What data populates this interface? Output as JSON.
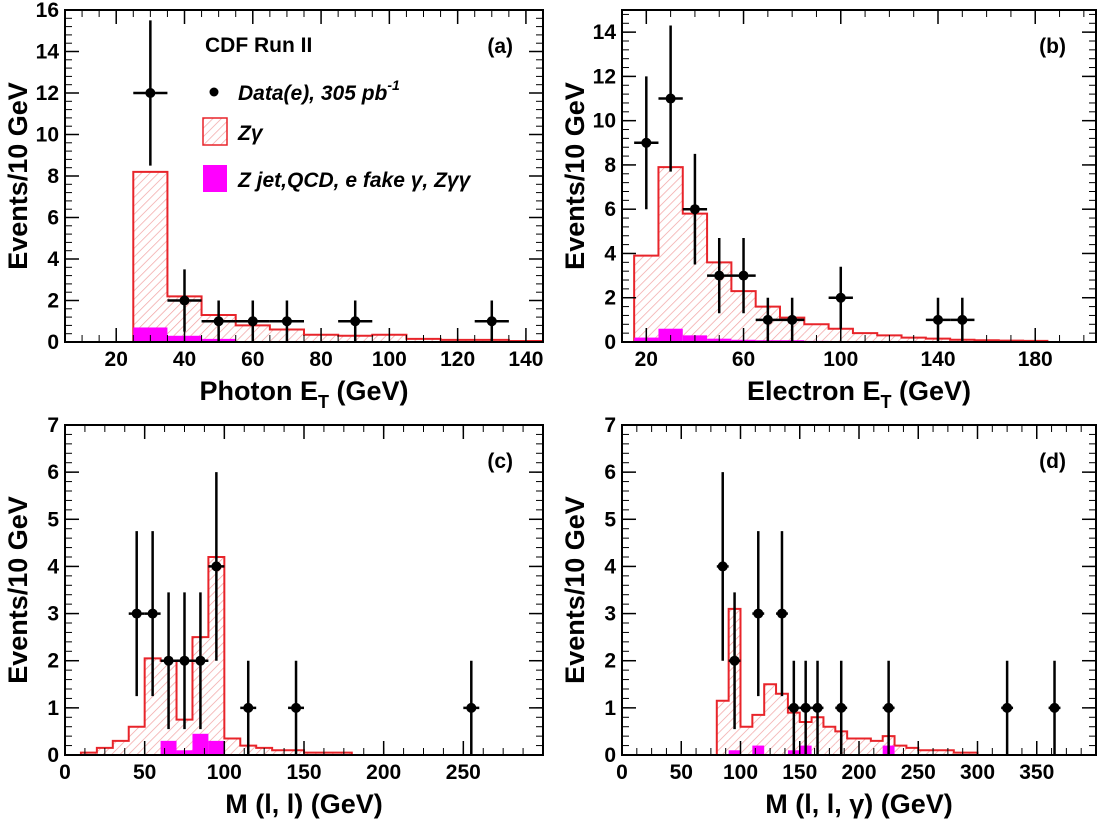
{
  "figure": {
    "ylabel": "Events/10 GeV",
    "experiment_label": "CDF Run II",
    "legend": {
      "data_label": "Data(e), 305 pb",
      "data_label_sup": "-1",
      "signal_label": "Zγ",
      "background_label": "Z jet,QCD, e fake γ, Zγγ"
    },
    "colors": {
      "signal": "#e8242a",
      "signal_hatch": "#f2a0a0",
      "background": "#ff00ff",
      "data": "#000000",
      "axis": "#000000"
    }
  },
  "chart_data": [
    {
      "id": "a",
      "panel_label": "(a)",
      "type": "histogram",
      "xlabel": "Photon E",
      "xlabel_sub": "T",
      "xlabel_unit": "(GeV)",
      "ylabel": "Events/10 GeV",
      "xlim": [
        5,
        145
      ],
      "ylim": [
        0,
        16
      ],
      "xticks": [
        20,
        40,
        60,
        80,
        100,
        120,
        140
      ],
      "yticks": [
        0,
        2,
        4,
        6,
        8,
        10,
        12,
        14,
        16
      ],
      "signal_bins": [
        [
          25,
          35,
          8.2
        ],
        [
          35,
          45,
          2.2
        ],
        [
          45,
          55,
          1.3
        ],
        [
          55,
          65,
          0.8
        ],
        [
          65,
          75,
          0.6
        ],
        [
          75,
          85,
          0.35
        ],
        [
          85,
          95,
          0.3
        ],
        [
          95,
          105,
          0.35
        ],
        [
          105,
          115,
          0.15
        ],
        [
          115,
          125,
          0.1
        ],
        [
          125,
          135,
          0.1
        ],
        [
          135,
          145,
          0.05
        ]
      ],
      "background_bins": [
        [
          25,
          35,
          0.7
        ],
        [
          35,
          45,
          0.3
        ],
        [
          45,
          55,
          0.15
        ]
      ],
      "data": [
        {
          "x": 30,
          "y": 12,
          "xerr": 5,
          "yerr": 3.5
        },
        {
          "x": 40,
          "y": 2,
          "xerr": 5,
          "yerr": 1.5
        },
        {
          "x": 50,
          "y": 1,
          "xerr": 5,
          "yerr": 1
        },
        {
          "x": 60,
          "y": 1,
          "xerr": 5,
          "yerr": 1
        },
        {
          "x": 70,
          "y": 1,
          "xerr": 5,
          "yerr": 1
        },
        {
          "x": 90,
          "y": 1,
          "xerr": 5,
          "yerr": 1
        },
        {
          "x": 130,
          "y": 1,
          "xerr": 5,
          "yerr": 1
        }
      ]
    },
    {
      "id": "b",
      "panel_label": "(b)",
      "type": "histogram",
      "xlabel": "Electron E",
      "xlabel_sub": "T",
      "xlabel_unit": "(GeV)",
      "ylabel": "Events/10 GeV",
      "xlim": [
        10,
        205
      ],
      "ylim": [
        0,
        15
      ],
      "xticks": [
        20,
        60,
        100,
        140,
        180
      ],
      "xticklabels": [
        "20",
        "60",
        "100",
        "140",
        "180"
      ],
      "yticks": [
        0,
        2,
        4,
        6,
        8,
        10,
        12,
        14
      ],
      "signal_bins": [
        [
          15,
          25,
          3.9
        ],
        [
          25,
          35,
          7.9
        ],
        [
          35,
          45,
          5.8
        ],
        [
          45,
          55,
          3.6
        ],
        [
          55,
          65,
          2.3
        ],
        [
          65,
          75,
          1.6
        ],
        [
          75,
          85,
          1.1
        ],
        [
          85,
          95,
          0.8
        ],
        [
          95,
          105,
          0.6
        ],
        [
          105,
          115,
          0.4
        ],
        [
          115,
          125,
          0.3
        ],
        [
          125,
          135,
          0.2
        ],
        [
          135,
          145,
          0.15
        ],
        [
          145,
          155,
          0.1
        ],
        [
          155,
          165,
          0.08
        ],
        [
          165,
          175,
          0.06
        ],
        [
          175,
          185,
          0.05
        ]
      ],
      "background_bins": [
        [
          15,
          25,
          0.2
        ],
        [
          25,
          35,
          0.6
        ],
        [
          35,
          45,
          0.3
        ],
        [
          45,
          55,
          0.15
        ],
        [
          55,
          65,
          0.1
        ],
        [
          65,
          75,
          0.08
        ],
        [
          75,
          85,
          0.08
        ],
        [
          85,
          95,
          0.05
        ]
      ],
      "data": [
        {
          "x": 20,
          "y": 9,
          "xerr": 5,
          "yerr": 3
        },
        {
          "x": 30,
          "y": 11,
          "xerr": 5,
          "yerr": 3.3
        },
        {
          "x": 40,
          "y": 6,
          "xerr": 5,
          "yerr": 2.5
        },
        {
          "x": 50,
          "y": 3,
          "xerr": 5,
          "yerr": 1.7
        },
        {
          "x": 60,
          "y": 3,
          "xerr": 5,
          "yerr": 1.7
        },
        {
          "x": 70,
          "y": 1,
          "xerr": 5,
          "yerr": 1
        },
        {
          "x": 80,
          "y": 1,
          "xerr": 5,
          "yerr": 1
        },
        {
          "x": 100,
          "y": 2,
          "xerr": 5,
          "yerr": 1.4
        },
        {
          "x": 140,
          "y": 1,
          "xerr": 5,
          "yerr": 1
        },
        {
          "x": 150,
          "y": 1,
          "xerr": 5,
          "yerr": 1
        }
      ]
    },
    {
      "id": "c",
      "panel_label": "(c)",
      "type": "histogram",
      "xlabel": "M (l, l)",
      "xlabel_unit": "(GeV)",
      "ylabel": "Events/10 GeV",
      "xlim": [
        0,
        300
      ],
      "ylim": [
        0,
        7
      ],
      "xticks": [
        0,
        50,
        100,
        150,
        200,
        250
      ],
      "yticks": [
        0,
        1,
        2,
        3,
        4,
        5,
        6,
        7
      ],
      "signal_bins": [
        [
          10,
          20,
          0.05
        ],
        [
          20,
          30,
          0.15
        ],
        [
          30,
          40,
          0.3
        ],
        [
          40,
          50,
          0.6
        ],
        [
          50,
          60,
          2.05
        ],
        [
          60,
          70,
          2.0
        ],
        [
          70,
          80,
          0.75
        ],
        [
          80,
          90,
          2.5
        ],
        [
          90,
          100,
          4.2
        ],
        [
          100,
          110,
          0.35
        ],
        [
          110,
          120,
          0.2
        ],
        [
          120,
          130,
          0.15
        ],
        [
          130,
          140,
          0.1
        ],
        [
          140,
          150,
          0.1
        ],
        [
          150,
          160,
          0.05
        ],
        [
          160,
          170,
          0.05
        ],
        [
          170,
          180,
          0.05
        ]
      ],
      "background_bins": [
        [
          60,
          70,
          0.3
        ],
        [
          70,
          80,
          0.1
        ],
        [
          80,
          90,
          0.45
        ],
        [
          90,
          100,
          0.3
        ]
      ],
      "data": [
        {
          "x": 45,
          "y": 3,
          "xerr": 5,
          "yerr": 1.75
        },
        {
          "x": 55,
          "y": 3,
          "xerr": 5,
          "yerr": 1.75
        },
        {
          "x": 65,
          "y": 2,
          "xerr": 5,
          "yerr": 1.45
        },
        {
          "x": 75,
          "y": 2,
          "xerr": 5,
          "yerr": 1.45
        },
        {
          "x": 85,
          "y": 2,
          "xerr": 5,
          "yerr": 1.45
        },
        {
          "x": 95,
          "y": 4,
          "xerr": 5,
          "yerr": 2
        },
        {
          "x": 115,
          "y": 1,
          "xerr": 5,
          "yerr": 1
        },
        {
          "x": 145,
          "y": 1,
          "xerr": 5,
          "yerr": 1
        },
        {
          "x": 255,
          "y": 1,
          "xerr": 5,
          "yerr": 1
        }
      ]
    },
    {
      "id": "d",
      "panel_label": "(d)",
      "type": "histogram",
      "xlabel": "M (l, l, γ)",
      "xlabel_unit": "(GeV)",
      "ylabel": "Events/10 GeV",
      "xlim": [
        0,
        400
      ],
      "ylim": [
        0,
        7
      ],
      "xticks": [
        0,
        50,
        100,
        150,
        200,
        250,
        300,
        350
      ],
      "yticks": [
        0,
        1,
        2,
        3,
        4,
        5,
        6,
        7
      ],
      "signal_bins": [
        [
          80,
          90,
          1.15
        ],
        [
          90,
          100,
          3.1
        ],
        [
          100,
          110,
          0.6
        ],
        [
          110,
          120,
          0.85
        ],
        [
          120,
          130,
          1.5
        ],
        [
          130,
          140,
          1.3
        ],
        [
          140,
          150,
          0.9
        ],
        [
          150,
          160,
          0.7
        ],
        [
          160,
          170,
          0.8
        ],
        [
          170,
          180,
          0.6
        ],
        [
          180,
          190,
          0.5
        ],
        [
          190,
          200,
          0.35
        ],
        [
          200,
          210,
          0.35
        ],
        [
          210,
          220,
          0.3
        ],
        [
          220,
          230,
          0.4
        ],
        [
          230,
          240,
          0.2
        ],
        [
          240,
          250,
          0.15
        ],
        [
          250,
          260,
          0.1
        ],
        [
          260,
          270,
          0.1
        ],
        [
          270,
          280,
          0.1
        ],
        [
          280,
          290,
          0.05
        ],
        [
          290,
          300,
          0.05
        ]
      ],
      "background_bins": [
        [
          90,
          100,
          0.1
        ],
        [
          110,
          120,
          0.2
        ],
        [
          140,
          150,
          0.1
        ],
        [
          150,
          160,
          0.2
        ],
        [
          220,
          230,
          0.2
        ]
      ],
      "data": [
        {
          "x": 85,
          "y": 4,
          "xerr": 5,
          "yerr": 2
        },
        {
          "x": 95,
          "y": 2,
          "xerr": 5,
          "yerr": 1.45
        },
        {
          "x": 115,
          "y": 3,
          "xerr": 5,
          "yerr": 1.75
        },
        {
          "x": 135,
          "y": 3,
          "xerr": 5,
          "yerr": 1.75
        },
        {
          "x": 145,
          "y": 1,
          "xerr": 5,
          "yerr": 1
        },
        {
          "x": 155,
          "y": 1,
          "xerr": 5,
          "yerr": 1
        },
        {
          "x": 165,
          "y": 1,
          "xerr": 5,
          "yerr": 1
        },
        {
          "x": 185,
          "y": 1,
          "xerr": 5,
          "yerr": 1
        },
        {
          "x": 225,
          "y": 1,
          "xerr": 5,
          "yerr": 1
        },
        {
          "x": 325,
          "y": 1,
          "xerr": 5,
          "yerr": 1
        },
        {
          "x": 365,
          "y": 1,
          "xerr": 5,
          "yerr": 1
        }
      ]
    }
  ]
}
